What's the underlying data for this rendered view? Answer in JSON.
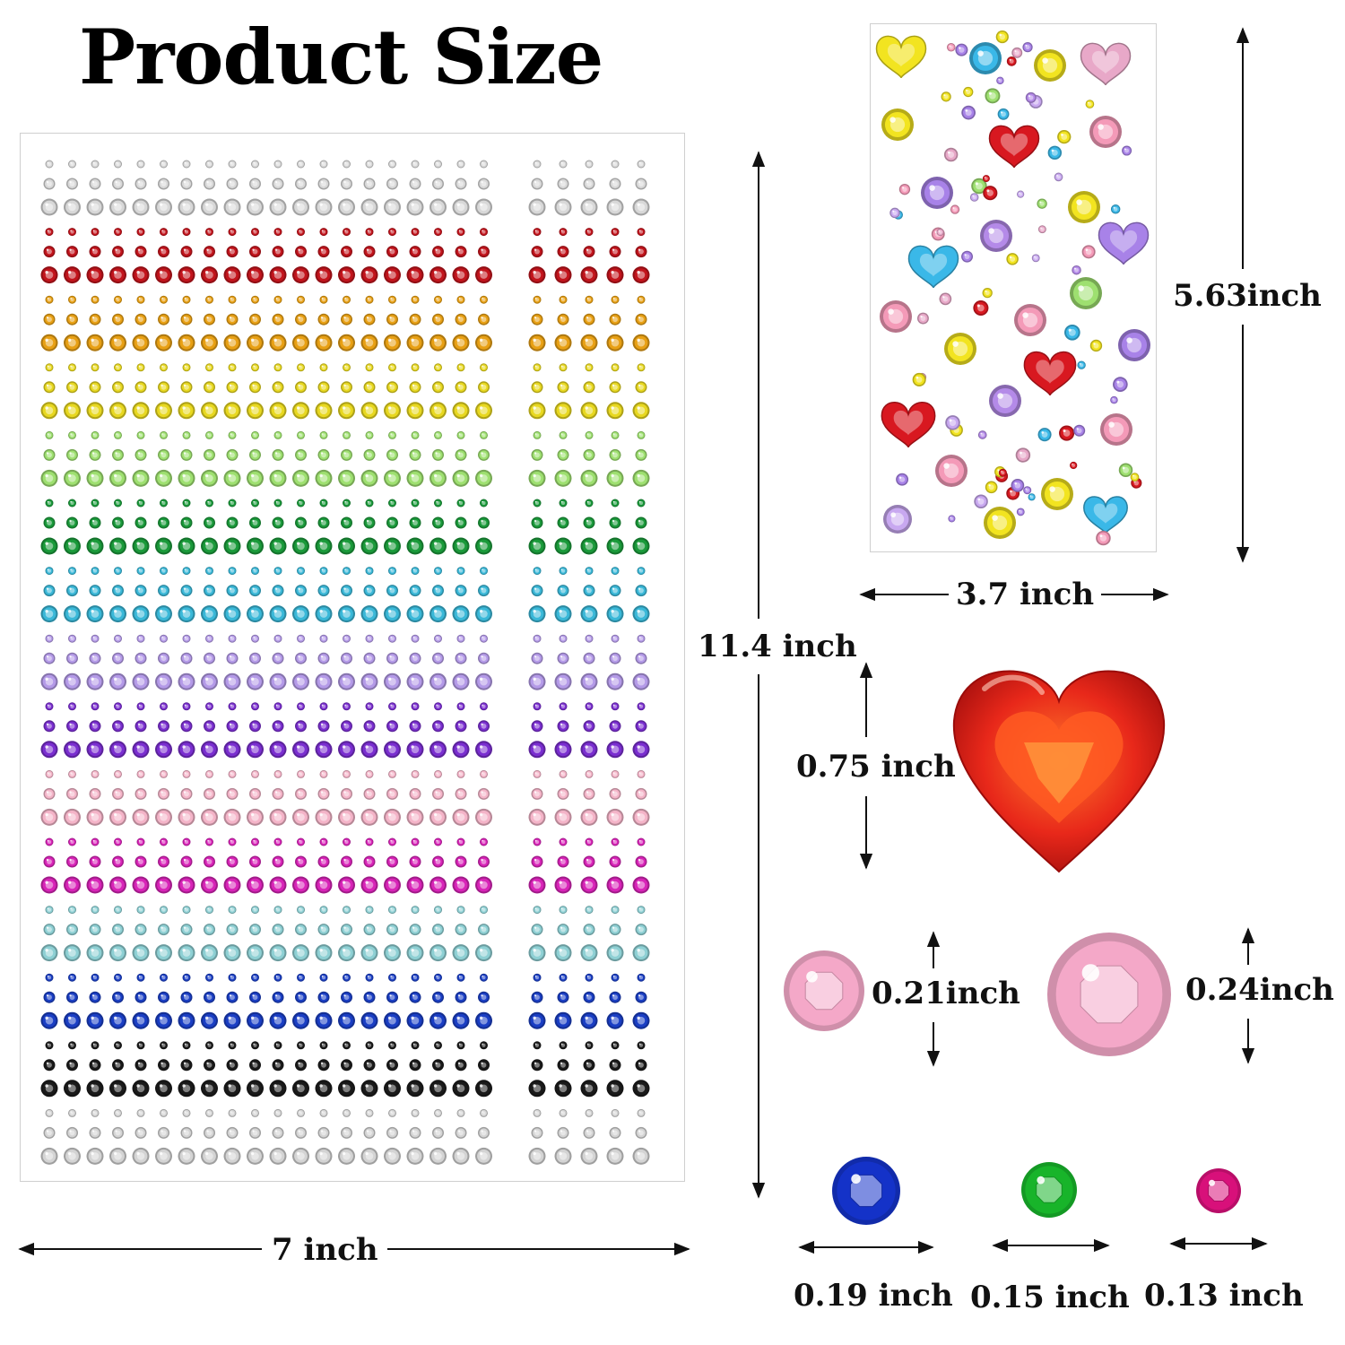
{
  "title": "Product Size",
  "sheet": {
    "width_label": "7 inch",
    "height_label": "11.4 inch",
    "row_colors": [
      "#d8d8d8",
      "#c2141c",
      "#e8a014",
      "#e8d820",
      "#9ee070",
      "#1a9a3a",
      "#3ab8d8",
      "#b49ae8",
      "#7a2ed0",
      "#f4b4c8",
      "#d824b8",
      "#8ed0d4",
      "#1a3ec4",
      "#1a1a1a",
      "#d4d4d4"
    ]
  },
  "sticker": {
    "width_label": "3.7 inch",
    "height_label": "5.63inch",
    "gem_colors": [
      "#f2e420",
      "#e8a8c8",
      "#3ab8e8",
      "#a882e8",
      "#d81820",
      "#9ee070",
      "#f49ab8",
      "#b48ae8",
      "#c8a8f0"
    ]
  },
  "gems": {
    "heart": {
      "label": "0.75 inch",
      "color": "#e8281a"
    },
    "pink_small": {
      "label": "0.21inch",
      "color": "#f4a8c8"
    },
    "pink_large": {
      "label": "0.24inch",
      "color": "#f4a8c8"
    },
    "blue": {
      "label": "0.19 inch",
      "color": "#1432c8"
    },
    "green": {
      "label": "0.15 inch",
      "color": "#18b42a"
    },
    "magenta": {
      "label": "0.13 inch",
      "color": "#d8107a"
    }
  }
}
